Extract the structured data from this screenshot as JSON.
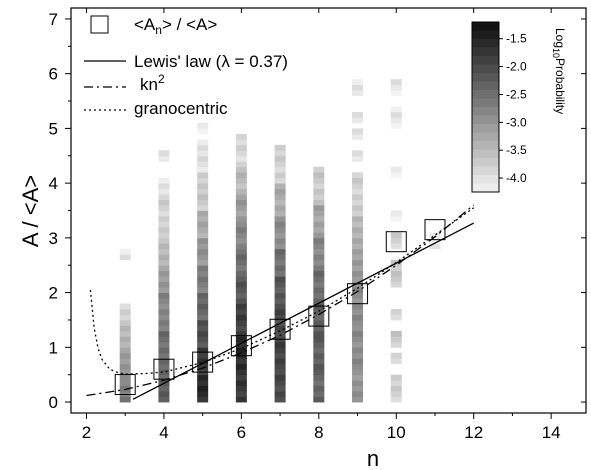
{
  "chart_data": {
    "type": "heatmap",
    "xlabel": "n",
    "ylabel": "A / <A>",
    "xlim": [
      1.6,
      14.9
    ],
    "ylim": [
      -0.2,
      7.2
    ],
    "xticks": [
      "2",
      "4",
      "6",
      "8",
      "10",
      "12",
      "14"
    ],
    "yticks": [
      "0",
      "1",
      "2",
      "3",
      "4",
      "5",
      "6",
      "7"
    ],
    "grid": false,
    "legend_position": "top-left",
    "legend": {
      "mean": {
        "pre": "<A",
        "sub": "n",
        "post": "> / <A>"
      },
      "lewis": "Lewis' law (λ = 0.37)",
      "kn2": {
        "base": "kn",
        "sup": "2"
      },
      "granocentric": "granocentric"
    },
    "colorbar": {
      "title": {
        "pre": "Log",
        "sub": "10",
        "post": "Probability"
      },
      "ticks": [
        "-1.5",
        "-2.0",
        "-2.5",
        "-3.0",
        "-3.5",
        "-4.0"
      ],
      "tick_values": [
        -1.5,
        -2.0,
        -2.5,
        -3.0,
        -3.5,
        -4.0
      ],
      "range": [
        -4.25,
        -1.2
      ]
    },
    "heatmap_bin_height": 0.1,
    "heatmap_columns": [
      {
        "n": 3,
        "segments": [
          {
            "from": 0.0,
            "to": 0.4,
            "v": -2.7
          },
          {
            "from": 0.4,
            "to": 0.9,
            "v": -3.0
          },
          {
            "from": 0.9,
            "to": 1.4,
            "v": -3.4
          },
          {
            "from": 1.4,
            "to": 1.8,
            "v": -3.8
          },
          {
            "from": 2.6,
            "to": 2.8,
            "v": -4.1
          }
        ]
      },
      {
        "n": 4,
        "segments": [
          {
            "from": 0.0,
            "to": 0.6,
            "v": -2.3
          },
          {
            "from": 0.6,
            "to": 1.3,
            "v": -2.5
          },
          {
            "from": 1.3,
            "to": 2.0,
            "v": -2.8
          },
          {
            "from": 2.0,
            "to": 2.5,
            "v": -3.1
          },
          {
            "from": 2.5,
            "to": 3.0,
            "v": -3.5
          },
          {
            "from": 3.0,
            "to": 3.8,
            "v": -3.8
          },
          {
            "from": 3.8,
            "to": 4.1,
            "v": -4.1
          },
          {
            "from": 4.4,
            "to": 4.6,
            "v": -4.1
          }
        ]
      },
      {
        "n": 5,
        "segments": [
          {
            "from": 0.0,
            "to": 0.5,
            "v": -1.6
          },
          {
            "from": 0.5,
            "to": 1.0,
            "v": -1.8
          },
          {
            "from": 1.0,
            "to": 1.5,
            "v": -2.1
          },
          {
            "from": 1.5,
            "to": 2.0,
            "v": -2.4
          },
          {
            "from": 2.0,
            "to": 2.5,
            "v": -2.7
          },
          {
            "from": 2.5,
            "to": 3.0,
            "v": -3.0
          },
          {
            "from": 3.0,
            "to": 3.5,
            "v": -3.3
          },
          {
            "from": 3.5,
            "to": 4.2,
            "v": -3.7
          },
          {
            "from": 4.2,
            "to": 4.8,
            "v": -4.0
          },
          {
            "from": 4.9,
            "to": 5.1,
            "v": -4.1
          }
        ]
      },
      {
        "n": 6,
        "segments": [
          {
            "from": 0.0,
            "to": 0.6,
            "v": -1.8
          },
          {
            "from": 0.6,
            "to": 1.2,
            "v": -1.6
          },
          {
            "from": 1.2,
            "to": 1.8,
            "v": -1.9
          },
          {
            "from": 1.8,
            "to": 2.3,
            "v": -2.2
          },
          {
            "from": 2.3,
            "to": 2.8,
            "v": -2.5
          },
          {
            "from": 2.8,
            "to": 3.3,
            "v": -2.8
          },
          {
            "from": 3.3,
            "to": 3.8,
            "v": -3.1
          },
          {
            "from": 3.8,
            "to": 4.3,
            "v": -3.5
          },
          {
            "from": 4.3,
            "to": 4.9,
            "v": -3.9
          }
        ]
      },
      {
        "n": 7,
        "segments": [
          {
            "from": 0.0,
            "to": 0.6,
            "v": -2.0
          },
          {
            "from": 0.6,
            "to": 1.2,
            "v": -1.9
          },
          {
            "from": 1.2,
            "to": 1.8,
            "v": -2.0
          },
          {
            "from": 1.8,
            "to": 2.3,
            "v": -2.2
          },
          {
            "from": 2.3,
            "to": 2.8,
            "v": -2.5
          },
          {
            "from": 2.8,
            "to": 3.4,
            "v": -2.9
          },
          {
            "from": 3.4,
            "to": 4.0,
            "v": -3.3
          },
          {
            "from": 4.0,
            "to": 4.7,
            "v": -3.8
          }
        ]
      },
      {
        "n": 8,
        "segments": [
          {
            "from": 0.0,
            "to": 0.6,
            "v": -2.4
          },
          {
            "from": 0.6,
            "to": 1.2,
            "v": -2.3
          },
          {
            "from": 1.2,
            "to": 1.8,
            "v": -2.3
          },
          {
            "from": 1.8,
            "to": 2.4,
            "v": -2.5
          },
          {
            "from": 2.4,
            "to": 3.0,
            "v": -2.8
          },
          {
            "from": 3.0,
            "to": 3.6,
            "v": -3.2
          },
          {
            "from": 3.6,
            "to": 4.3,
            "v": -3.7
          }
        ]
      },
      {
        "n": 9,
        "segments": [
          {
            "from": 0.0,
            "to": 0.6,
            "v": -3.0
          },
          {
            "from": 0.6,
            "to": 1.4,
            "v": -2.9
          },
          {
            "from": 1.4,
            "to": 2.2,
            "v": -2.9
          },
          {
            "from": 2.2,
            "to": 2.8,
            "v": -3.1
          },
          {
            "from": 2.8,
            "to": 3.4,
            "v": -3.4
          },
          {
            "from": 3.4,
            "to": 4.2,
            "v": -3.8
          },
          {
            "from": 4.4,
            "to": 4.6,
            "v": -4.1
          },
          {
            "from": 4.8,
            "to": 5.0,
            "v": -4.1
          },
          {
            "from": 5.1,
            "to": 5.3,
            "v": -4.1
          },
          {
            "from": 5.6,
            "to": 5.9,
            "v": -4.1
          }
        ]
      },
      {
        "n": 10,
        "segments": [
          {
            "from": 0.0,
            "to": 0.5,
            "v": -3.8
          },
          {
            "from": 0.7,
            "to": 0.9,
            "v": -3.8
          },
          {
            "from": 1.0,
            "to": 1.3,
            "v": -3.7
          },
          {
            "from": 1.5,
            "to": 1.7,
            "v": -3.8
          },
          {
            "from": 2.1,
            "to": 2.6,
            "v": -3.7
          },
          {
            "from": 2.8,
            "to": 3.1,
            "v": -3.8
          },
          {
            "from": 3.3,
            "to": 3.5,
            "v": -4.1
          },
          {
            "from": 4.1,
            "to": 4.3,
            "v": -4.1
          },
          {
            "from": 5.0,
            "to": 5.4,
            "v": -4.1
          },
          {
            "from": 5.6,
            "to": 5.9,
            "v": -4.1
          }
        ]
      },
      {
        "n": 11,
        "segments": [
          {
            "from": 2.8,
            "to": 3.1,
            "v": -4.1
          }
        ]
      }
    ],
    "series": [
      {
        "name": "<An> / <A>",
        "kind": "marker-square",
        "x": [
          3,
          4,
          5,
          6,
          7,
          8,
          9,
          10,
          11
        ],
        "y": [
          0.32,
          0.6,
          0.73,
          1.03,
          1.33,
          1.57,
          1.98,
          2.93,
          3.15
        ]
      },
      {
        "name": "Lewis' law (λ = 0.37)",
        "kind": "solid",
        "x": [
          3.2,
          12.0
        ],
        "y": [
          0.05,
          3.27
        ]
      },
      {
        "name": "kn2",
        "kind": "dash-dot",
        "x": [
          2.0,
          3.0,
          4.0,
          5.0,
          6.0,
          7.0,
          8.0,
          9.0,
          10.0,
          11.0,
          12.0
        ],
        "y": [
          0.12,
          0.23,
          0.4,
          0.62,
          0.9,
          1.22,
          1.6,
          2.02,
          2.5,
          3.02,
          3.6
        ]
      },
      {
        "name": "granocentric",
        "kind": "dotted",
        "x": [
          2.1,
          2.15,
          2.2,
          2.3,
          2.4,
          2.6,
          2.8,
          3.0,
          3.5,
          4.0,
          5.0,
          6.0,
          7.0,
          8.0,
          9.0,
          10.0,
          11.0,
          12.0
        ],
        "y": [
          2.05,
          1.7,
          1.35,
          0.98,
          0.78,
          0.6,
          0.54,
          0.51,
          0.52,
          0.55,
          0.72,
          0.98,
          1.3,
          1.66,
          2.08,
          2.55,
          3.05,
          3.55
        ]
      }
    ]
  }
}
